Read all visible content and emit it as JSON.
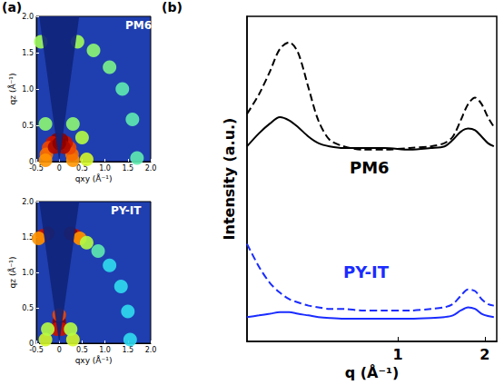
{
  "chart_data": [
    {
      "type": "intensity_map",
      "panel": "(a)",
      "title": "PM6",
      "xlabel": "qxy (Å⁻¹)",
      "ylabel": "qz (Å⁻¹)",
      "xlim": [
        -0.5,
        2.0
      ],
      "xticks": [
        -0.5,
        0,
        0.5,
        {
          "value": 1,
          "label": "1.0"
        },
        1.5,
        {
          "value": 2,
          "label": "2.0"
        }
      ],
      "ylim": [
        0,
        2.0
      ],
      "yticks": [
        0,
        0.5,
        {
          "value": 1,
          "label": "1.0"
        },
        1.5,
        {
          "value": 2,
          "label": "2.0"
        }
      ],
      "intensity_range": [
        0,
        10
      ],
      "points": [
        [
          0.3,
          0.02,
          7
        ],
        [
          0.28,
          0.1,
          7.5
        ],
        [
          0.23,
          0.19,
          8
        ],
        [
          0.15,
          0.26,
          9
        ],
        [
          0.05,
          0.3,
          10
        ],
        [
          -0.05,
          0.3,
          10
        ],
        [
          -0.15,
          0.26,
          9
        ],
        [
          -0.23,
          0.19,
          8
        ],
        [
          -0.28,
          0.1,
          7.5
        ],
        [
          -0.3,
          0.02,
          7
        ],
        [
          0.1,
          0.2,
          9.5
        ],
        [
          -0.1,
          0.2,
          9.5
        ],
        [
          0,
          0.25,
          10
        ],
        [
          0.6,
          0.03,
          5
        ],
        [
          0.5,
          0.33,
          4.5
        ],
        [
          0.3,
          0.52,
          4
        ],
        [
          -0.3,
          0.52,
          4
        ],
        [
          1.7,
          0.05,
          3.5
        ],
        [
          1.6,
          0.58,
          3.5
        ],
        [
          1.38,
          1.0,
          3.5
        ],
        [
          1.1,
          1.3,
          3.8
        ],
        [
          0.75,
          1.53,
          4
        ],
        [
          0.4,
          1.65,
          4.2
        ],
        [
          -0.4,
          1.65,
          4.2
        ]
      ]
    },
    {
      "type": "intensity_map",
      "title": "PY-IT",
      "xlabel": "qxy (Å⁻¹)",
      "ylabel": "qz (Å⁻¹)",
      "xlim": [
        -0.5,
        2.0
      ],
      "xticks": [
        -0.5,
        0,
        0.5,
        {
          "value": 1,
          "label": "1.0"
        },
        1.5,
        {
          "value": 2,
          "label": "2.0"
        }
      ],
      "ylim": [
        0,
        2.0
      ],
      "yticks": [
        0,
        0.5,
        {
          "value": 1,
          "label": "1.0"
        },
        1.5,
        {
          "value": 2,
          "label": "2.0"
        }
      ],
      "intensity_range": [
        0,
        10
      ],
      "points": [
        [
          0.35,
          1.52,
          9
        ],
        [
          0.25,
          1.55,
          10
        ],
        [
          -0.25,
          1.55,
          10
        ],
        [
          -0.35,
          1.52,
          9
        ],
        [
          0.45,
          1.48,
          7
        ],
        [
          -0.45,
          1.48,
          7
        ],
        [
          0.6,
          1.42,
          4.5
        ],
        [
          0.85,
          1.3,
          3.5
        ],
        [
          1.1,
          1.1,
          3
        ],
        [
          1.35,
          0.8,
          3
        ],
        [
          1.5,
          0.45,
          3
        ],
        [
          1.55,
          0.05,
          3
        ],
        [
          0,
          0.3,
          10
        ],
        [
          0,
          0.4,
          8
        ],
        [
          0.05,
          0.2,
          9
        ],
        [
          -0.05,
          0.2,
          9
        ],
        [
          0.3,
          0.05,
          5
        ],
        [
          -0.3,
          0.05,
          5
        ],
        [
          0.25,
          0.2,
          4.5
        ],
        [
          -0.25,
          0.2,
          4.5
        ]
      ]
    },
    {
      "type": "line",
      "panel": "(b)",
      "xlabel": "q (Å⁻¹)",
      "ylabel": "Intensity (a.u.)",
      "log": "x",
      "tick_labels": "x",
      "grid": false,
      "xlim": [
        0.3,
        2.2
      ],
      "xticks": [
        1,
        2
      ],
      "ylim": [
        0,
        10
      ],
      "yticks": [],
      "x": [
        0.3,
        0.33,
        0.36,
        0.39,
        0.42,
        0.45,
        0.49,
        0.53,
        0.58,
        0.65,
        0.75,
        0.9,
        1.1,
        1.3,
        1.45,
        1.55,
        1.65,
        1.75,
        1.85,
        1.95,
        2.05,
        2.15
      ],
      "series": [
        {
          "color": "#000000",
          "line_style": "dashed",
          "values": [
            7.0,
            7.6,
            8.3,
            9.0,
            9.2,
            8.9,
            7.8,
            6.8,
            6.2,
            6.0,
            5.9,
            5.9,
            5.95,
            6.0,
            6.1,
            6.3,
            6.8,
            7.3,
            7.5,
            7.3,
            6.9,
            6.6
          ]
        },
        {
          "color": "#000000",
          "line_style": "solid",
          "values": [
            6.0,
            6.4,
            6.7,
            6.9,
            6.8,
            6.6,
            6.3,
            6.1,
            6.0,
            5.95,
            5.95,
            5.95,
            5.9,
            5.95,
            6.0,
            6.2,
            6.45,
            6.55,
            6.5,
            6.3,
            6.1,
            6.0
          ]
        },
        {
          "color": "#1a2cff",
          "line_style": "dashed",
          "values": [
            3.0,
            2.3,
            1.8,
            1.5,
            1.3,
            1.2,
            1.1,
            1.05,
            1.0,
            1.0,
            0.95,
            0.95,
            0.95,
            1.0,
            1.05,
            1.15,
            1.4,
            1.6,
            1.55,
            1.3,
            1.15,
            1.1
          ]
        },
        {
          "color": "#1a2cff",
          "line_style": "solid",
          "values": [
            0.75,
            0.8,
            0.85,
            0.9,
            0.9,
            0.85,
            0.8,
            0.75,
            0.72,
            0.7,
            0.7,
            0.7,
            0.7,
            0.72,
            0.75,
            0.8,
            0.95,
            1.05,
            1.0,
            0.85,
            0.78,
            0.75
          ]
        }
      ],
      "annotations": [
        {
          "text": "PM6",
          "color": "#000000"
        },
        {
          "text": "PY-IT",
          "color": "#1a2cff"
        }
      ]
    }
  ]
}
